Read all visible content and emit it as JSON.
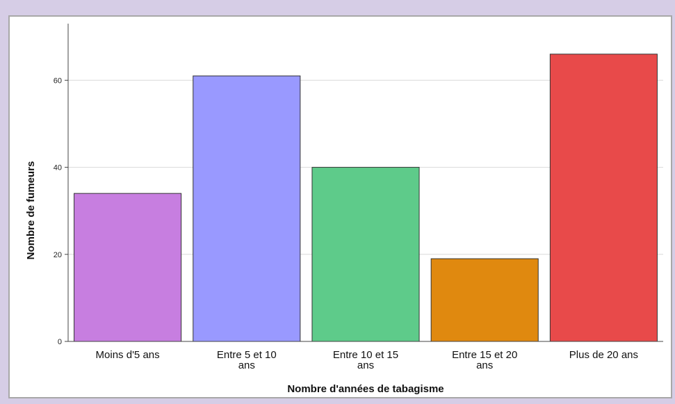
{
  "chart_data": {
    "type": "bar",
    "categories": [
      [
        "Moins d'5 ans"
      ],
      [
        "Entre 5 et 10",
        "ans"
      ],
      [
        "Entre 10 et 15",
        "ans"
      ],
      [
        "Entre 15 et 20",
        "ans"
      ],
      [
        "Plus de 20 ans"
      ]
    ],
    "values": [
      34,
      61,
      40,
      19,
      66
    ],
    "colors": [
      "#c77ee0",
      "#9999ff",
      "#5ecb8a",
      "#e0890f",
      "#e84a4a"
    ],
    "xlabel": "Nombre d'années de tabagisme",
    "ylabel": "Nombre de fumeurs",
    "ylim": [
      0,
      73
    ],
    "yticks": [
      0,
      20,
      40,
      60
    ],
    "grid": true,
    "legend": "none"
  }
}
